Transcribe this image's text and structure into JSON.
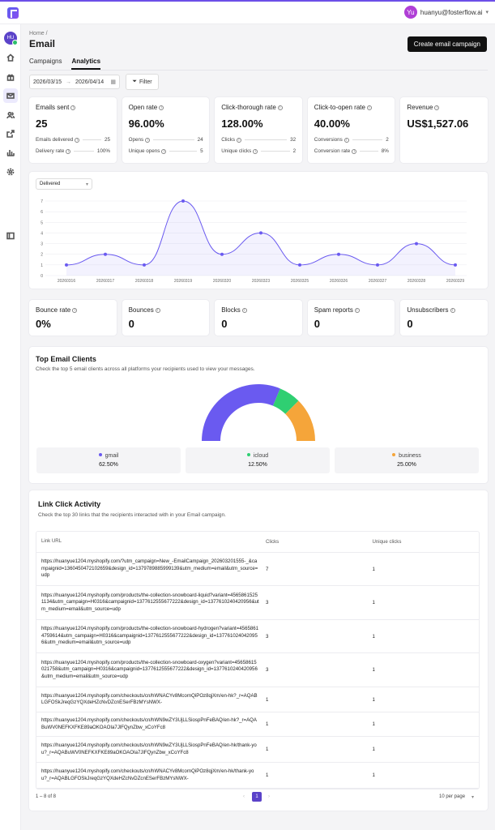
{
  "user": {
    "initials": "Yu",
    "email": "huanyu@fosterflow.ai"
  },
  "sidebar": {
    "avatar": "HU",
    "icons": [
      "home-icon",
      "gift-icon",
      "mail-icon",
      "users-icon",
      "share-icon",
      "chart-icon",
      "settings-icon",
      "sidebar-toggle-icon"
    ]
  },
  "breadcrumb": "Home  /",
  "page_title": "Email",
  "cta_label": "Create email campaign",
  "tabs": [
    {
      "label": "Campaigns"
    },
    {
      "label": "Analytics"
    }
  ],
  "date_range": {
    "start": "2026/03/15",
    "end": "2026/04/14"
  },
  "filter_label": "Filter",
  "stats": [
    {
      "label": "Emails sent",
      "value": "25",
      "subs": [
        {
          "label": "Emails delivered",
          "value": "25"
        },
        {
          "label": "Delivery rate",
          "value": "100%"
        }
      ]
    },
    {
      "label": "Open rate",
      "value": "96.00%",
      "subs": [
        {
          "label": "Opens",
          "value": "24"
        },
        {
          "label": "Unique opens",
          "value": "5"
        }
      ]
    },
    {
      "label": "Click-thorough rate",
      "value": "128.00%",
      "subs": [
        {
          "label": "Clicks",
          "value": "32"
        },
        {
          "label": "Unique clicks",
          "value": "2"
        }
      ]
    },
    {
      "label": "Click-to-open rate",
      "value": "40.00%",
      "subs": [
        {
          "label": "Conversions",
          "value": "2"
        },
        {
          "label": "Conversion rate",
          "value": "8%"
        }
      ]
    },
    {
      "label": "Revenue",
      "value": "US$1,527.06",
      "subs": []
    }
  ],
  "chart_select": "Delivered",
  "chart_data": {
    "type": "line",
    "x": [
      "20260316",
      "20260317",
      "20260318",
      "20260319",
      "20260320",
      "20260323",
      "20260325",
      "20260326",
      "20260327",
      "20260328",
      "20260329"
    ],
    "series": [
      {
        "values": [
          1,
          2,
          1,
          7,
          2,
          4,
          1,
          2,
          1,
          3,
          1
        ]
      }
    ],
    "ylim": [
      0,
      7
    ],
    "yticks": [
      "0",
      "1",
      "2",
      "3",
      "4",
      "5",
      "6",
      "7"
    ],
    "color": "#6a5af0"
  },
  "stats2": [
    {
      "label": "Bounce rate",
      "value": "0%"
    },
    {
      "label": "Bounces",
      "value": "0"
    },
    {
      "label": "Blocks",
      "value": "0"
    },
    {
      "label": "Spam reports",
      "value": "0"
    },
    {
      "label": "Unsubscribers",
      "value": "0"
    }
  ],
  "clients": {
    "title": "Top Email Clients",
    "subtitle": "Check the top 5 email clients across all platforms your recipients used to view your messages.",
    "items": [
      {
        "name": "gmail",
        "percent": "62.50%",
        "value": 62.5,
        "color": "#6a5af0"
      },
      {
        "name": "icloud",
        "percent": "12.50%",
        "value": 12.5,
        "color": "#2fcf72"
      },
      {
        "name": "business",
        "percent": "25.00%",
        "value": 25,
        "color": "#f5a53a"
      }
    ]
  },
  "links": {
    "title": "Link Click Activity",
    "subtitle": "Check the top 30 links that the recipients interacted with in your Email campaign.",
    "headers": [
      "Link URL",
      "Clicks",
      "Unique clicks"
    ],
    "rows": [
      {
        "url": "https://huanyue1204.myshopify.com/?utm_campaign=New_-EmailCampaign_202603201555-_&campaignid=1360450472102659&design_id=1379789885999139&utm_medium=email&utm_source=udp",
        "clicks": "7",
        "unique": "1"
      },
      {
        "url": "https://huanyue1204.myshopify.com/products/the-collection-snowboard-liquid?variant=45658615251134&utm_campaign=H0316&campaignid=1377612555677222&design_id=1377610240420956&utm_medium=email&utm_source=udp",
        "clicks": "3",
        "unique": "1"
      },
      {
        "url": "https://huanyue1204.myshopify.com/products/the-collection-snowboard-hydrogen?variant=45658614759614&utm_campaign=H0316&campaignid=1377612555677222&design_id=1377610240420956&utm_medium=email&utm_source=udp",
        "clicks": "3",
        "unique": "1"
      },
      {
        "url": "https://huanyue1204.myshopify.com/products/the-collection-snowboard-oxygen?variant=45658615021758&utm_campaign=H0316&campaignid=1377612555677222&design_id=1377610240420956&utm_medium=email&utm_source=udp",
        "clicks": "3",
        "unique": "1"
      },
      {
        "url": "https://huanyue1204.myshopify.com/checkouts/cn/hWNACYv8McornQiPOz8qjXm/en-hk?_r=AQABLGFOSkJreqGzYQXdeHZcNvDZcnESerFBzMYsNWX-",
        "clicks": "1",
        "unique": "1"
      },
      {
        "url": "https://huanyue1204.myshopify.com/checkouts/cn/hWN9wZY3UjLLSiospPnFeBAQ/en-hk?_r=AQABuWV0NEFKXFKE89aOKOAOIa7JlFQynZbw_xCoYFc8",
        "clicks": "1",
        "unique": "1"
      },
      {
        "url": "https://huanyue1204.myshopify.com/checkouts/cn/hWN9wZY3UjLLSiospPnFeBAQ/en-hk/thank-you?_r=AQABuWV0NEFKXFKE89aOKOAOIa7JlFQynZbw_xCoYFc8",
        "clicks": "1",
        "unique": "1"
      },
      {
        "url": "https://huanyue1204.myshopify.com/checkouts/cn/hWNACYv8McornQiPOz8qjXm/en-hk/thank-you?_r=AQABLGFOSkJreqGzYQXdeHZcNvDZcnESerFBzMYsNWX-",
        "clicks": "1",
        "unique": "1"
      }
    ],
    "range": "1 – 8 of 8",
    "page": "1",
    "per_page": "10 per page"
  }
}
